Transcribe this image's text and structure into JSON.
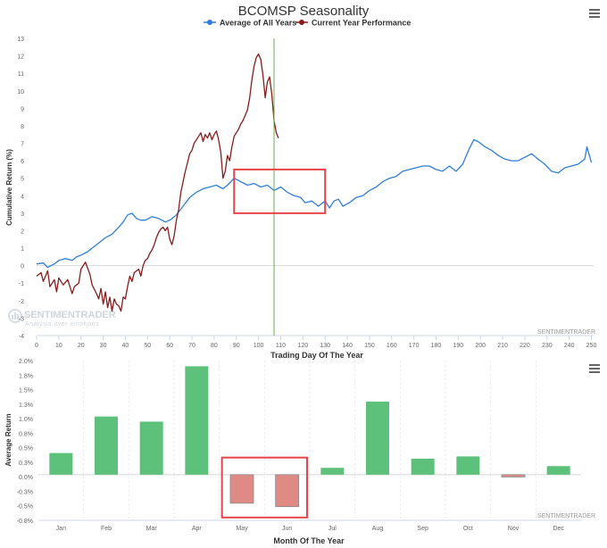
{
  "chart_data": [
    {
      "type": "line",
      "title": "BCOMSP Seasonality",
      "xlabel": "Trading Day Of The Year",
      "ylabel": "Cumulative Return (%)",
      "xlim": [
        0,
        251
      ],
      "ylim": [
        -4,
        13
      ],
      "xticks": [
        0,
        10,
        20,
        30,
        40,
        50,
        60,
        70,
        80,
        90,
        100,
        110,
        120,
        130,
        140,
        150,
        160,
        170,
        180,
        190,
        200,
        210,
        220,
        230,
        240,
        250
      ],
      "yticks": [
        -4,
        -3,
        -2,
        -1,
        0,
        1,
        2,
        3,
        4,
        5,
        6,
        7,
        8,
        9,
        10,
        11,
        12,
        13
      ],
      "grid": false,
      "legend": "top-center",
      "vertical_marker_x": 107,
      "highlight_box": {
        "x": [
          89,
          130
        ],
        "y": [
          3,
          5.5
        ]
      },
      "watermark": {
        "brand": "SENTIMENTRADER",
        "tagline": "Analysis over emotions",
        "corner_label": "SENTIMENTRADER"
      },
      "series": [
        {
          "name": "Average of All Years",
          "color": "#2f7ed8",
          "points": [
            [
              0,
              0.1
            ],
            [
              3,
              0.15
            ],
            [
              5,
              -0.1
            ],
            [
              8,
              0.1
            ],
            [
              10,
              0.3
            ],
            [
              13,
              0.4
            ],
            [
              16,
              0.3
            ],
            [
              18,
              0.5
            ],
            [
              20,
              0.6
            ],
            [
              23,
              0.8
            ],
            [
              26,
              1.1
            ],
            [
              28,
              1.3
            ],
            [
              31,
              1.6
            ],
            [
              34,
              1.8
            ],
            [
              37,
              2.2
            ],
            [
              39,
              2.5
            ],
            [
              41,
              2.9
            ],
            [
              43,
              3.0
            ],
            [
              45,
              2.7
            ],
            [
              47,
              2.6
            ],
            [
              49,
              2.6
            ],
            [
              52,
              2.8
            ],
            [
              55,
              2.7
            ],
            [
              58,
              2.5
            ],
            [
              60,
              2.6
            ],
            [
              63,
              2.9
            ],
            [
              66,
              3.4
            ],
            [
              69,
              3.9
            ],
            [
              72,
              4.2
            ],
            [
              75,
              4.4
            ],
            [
              78,
              4.5
            ],
            [
              81,
              4.6
            ],
            [
              84,
              4.4
            ],
            [
              86,
              4.6
            ],
            [
              89,
              5.0
            ],
            [
              92,
              4.8
            ],
            [
              95,
              4.6
            ],
            [
              98,
              4.7
            ],
            [
              101,
              4.5
            ],
            [
              104,
              4.6
            ],
            [
              107,
              4.3
            ],
            [
              110,
              4.5
            ],
            [
              113,
              4.2
            ],
            [
              116,
              4.0
            ],
            [
              119,
              3.9
            ],
            [
              121,
              3.6
            ],
            [
              124,
              3.7
            ],
            [
              127,
              3.4
            ],
            [
              130,
              3.7
            ],
            [
              132,
              3.3
            ],
            [
              134,
              3.7
            ],
            [
              136,
              3.8
            ],
            [
              138,
              3.4
            ],
            [
              141,
              3.6
            ],
            [
              144,
              3.9
            ],
            [
              147,
              4.0
            ],
            [
              150,
              4.3
            ],
            [
              153,
              4.5
            ],
            [
              156,
              4.8
            ],
            [
              159,
              5.0
            ],
            [
              162,
              5.1
            ],
            [
              165,
              5.4
            ],
            [
              168,
              5.5
            ],
            [
              171,
              5.6
            ],
            [
              174,
              5.7
            ],
            [
              177,
              5.7
            ],
            [
              180,
              5.5
            ],
            [
              183,
              5.4
            ],
            [
              186,
              5.7
            ],
            [
              189,
              5.4
            ],
            [
              192,
              5.8
            ],
            [
              195,
              6.7
            ],
            [
              197,
              7.2
            ],
            [
              199,
              7.1
            ],
            [
              202,
              6.8
            ],
            [
              205,
              6.6
            ],
            [
              208,
              6.3
            ],
            [
              211,
              6.1
            ],
            [
              214,
              6.0
            ],
            [
              217,
              6.0
            ],
            [
              220,
              6.2
            ],
            [
              223,
              6.4
            ],
            [
              226,
              6.1
            ],
            [
              229,
              5.8
            ],
            [
              232,
              5.4
            ],
            [
              235,
              5.3
            ],
            [
              238,
              5.6
            ],
            [
              241,
              5.7
            ],
            [
              244,
              5.8
            ],
            [
              247,
              6.1
            ],
            [
              248,
              6.8
            ],
            [
              250,
              5.9
            ]
          ]
        },
        {
          "name": "Current Year Performance",
          "color": "#8b1a1a",
          "points": [
            [
              0,
              -0.6
            ],
            [
              2,
              -0.4
            ],
            [
              3,
              -0.9
            ],
            [
              5,
              -0.3
            ],
            [
              6,
              -1.2
            ],
            [
              8,
              -0.8
            ],
            [
              9,
              -1.5
            ],
            [
              10,
              -0.7
            ],
            [
              12,
              -1.1
            ],
            [
              14,
              -0.8
            ],
            [
              16,
              -1.6
            ],
            [
              17,
              -1.2
            ],
            [
              19,
              -1.0
            ],
            [
              20,
              -0.2
            ],
            [
              22,
              0.2
            ],
            [
              24,
              -0.5
            ],
            [
              25,
              -1.1
            ],
            [
              27,
              -1.6
            ],
            [
              28,
              -1.9
            ],
            [
              29,
              -1.3
            ],
            [
              30,
              -2.2
            ],
            [
              31,
              -1.5
            ],
            [
              32,
              -2.4
            ],
            [
              33,
              -1.8
            ],
            [
              34,
              -2.6
            ],
            [
              35,
              -1.9
            ],
            [
              36,
              -2.2
            ],
            [
              37,
              -2.3
            ],
            [
              38,
              -2.6
            ],
            [
              39,
              -1.8
            ],
            [
              40,
              -1.9
            ],
            [
              41,
              -1.2
            ],
            [
              42,
              -0.6
            ],
            [
              43,
              -0.9
            ],
            [
              44,
              -0.4
            ],
            [
              45,
              -0.3
            ],
            [
              46,
              -0.2
            ],
            [
              47,
              -0.6
            ],
            [
              48,
              0.0
            ],
            [
              49,
              0.3
            ],
            [
              50,
              0.4
            ],
            [
              51,
              0.7
            ],
            [
              52,
              0.9
            ],
            [
              53,
              1.2
            ],
            [
              54,
              1.6
            ],
            [
              55,
              1.9
            ],
            [
              56,
              2.1
            ],
            [
              57,
              2.2
            ],
            [
              58,
              2.0
            ],
            [
              59,
              2.2
            ],
            [
              60,
              1.5
            ],
            [
              61,
              1.2
            ],
            [
              62,
              1.7
            ],
            [
              63,
              2.6
            ],
            [
              64,
              3.2
            ],
            [
              65,
              4.2
            ],
            [
              66,
              4.8
            ],
            [
              67,
              5.4
            ],
            [
              68,
              5.9
            ],
            [
              69,
              6.4
            ],
            [
              70,
              6.6
            ],
            [
              71,
              7.0
            ],
            [
              72,
              7.2
            ],
            [
              73,
              7.4
            ],
            [
              74,
              7.6
            ],
            [
              75,
              7.1
            ],
            [
              76,
              7.5
            ],
            [
              77,
              7.3
            ],
            [
              78,
              7.6
            ],
            [
              79,
              7.2
            ],
            [
              80,
              7.5
            ],
            [
              81,
              7.7
            ],
            [
              82,
              7.2
            ],
            [
              83,
              6.5
            ],
            [
              84,
              5.0
            ],
            [
              85,
              5.4
            ],
            [
              86,
              6.3
            ],
            [
              87,
              6.0
            ],
            [
              88,
              6.8
            ],
            [
              89,
              7.4
            ],
            [
              90,
              7.6
            ],
            [
              91,
              7.8
            ],
            [
              92,
              8.1
            ],
            [
              93,
              8.3
            ],
            [
              94,
              8.6
            ],
            [
              95,
              8.9
            ],
            [
              96,
              9.6
            ],
            [
              97,
              10.6
            ],
            [
              98,
              11.4
            ],
            [
              99,
              11.9
            ],
            [
              100,
              12.1
            ],
            [
              101,
              11.8
            ],
            [
              102,
              10.9
            ],
            [
              103,
              9.6
            ],
            [
              104,
              10.5
            ],
            [
              105,
              10.8
            ],
            [
              106,
              9.8
            ],
            [
              107,
              8.3
            ],
            [
              108,
              7.6
            ],
            [
              109,
              7.3
            ]
          ]
        }
      ]
    },
    {
      "type": "bar",
      "xlabel": "Month Of The Year",
      "ylabel": "Average Return",
      "ylim": [
        -0.8,
        2.0
      ],
      "yticks": [
        "-0.8%",
        "-0.5%",
        "-0.3%",
        "0.0%",
        "0.3%",
        "0.5%",
        "0.8%",
        "1.0%",
        "1.3%",
        "1.5%",
        "1.8%",
        "2.0%"
      ],
      "grid": false,
      "highlight_box": {
        "categories": [
          "May",
          "Jun"
        ]
      },
      "positive_color": "#5dc07b",
      "negative_color": "#e08a86",
      "watermark": "SENTIMENTRADER",
      "categories": [
        "Jan",
        "Feb",
        "Mar",
        "Apr",
        "May",
        "Jun",
        "Jul",
        "Aug",
        "Sep",
        "Oct",
        "Nov",
        "Dec"
      ],
      "values": [
        0.38,
        1.02,
        0.93,
        1.9,
        -0.5,
        -0.56,
        0.12,
        1.28,
        0.28,
        0.32,
        -0.04,
        0.15
      ]
    }
  ]
}
